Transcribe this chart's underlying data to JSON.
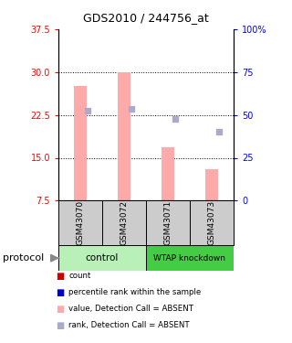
{
  "title": "GDS2010 / 244756_at",
  "samples": [
    "GSM43070",
    "GSM43072",
    "GSM43071",
    "GSM43073"
  ],
  "bar_values": [
    27.5,
    30.0,
    16.8,
    13.0
  ],
  "bar_color": "#ffaaaa",
  "rank_values": [
    23.2,
    23.5,
    21.8,
    19.5
  ],
  "rank_color": "#aaaacc",
  "ylim_left": [
    7.5,
    37.5
  ],
  "left_ticks": [
    7.5,
    15.0,
    22.5,
    30.0,
    37.5
  ],
  "right_tick_labels": [
    "0",
    "25",
    "50",
    "75",
    "100%"
  ],
  "hlines": [
    15.0,
    22.5,
    30.0
  ],
  "bar_bottom": 7.5,
  "bar_width": 0.3,
  "legend_items": [
    {
      "label": "count",
      "color": "#cc0000"
    },
    {
      "label": "percentile rank within the sample",
      "color": "#0000cc"
    },
    {
      "label": "value, Detection Call = ABSENT",
      "color": "#ffaaaa"
    },
    {
      "label": "rank, Detection Call = ABSENT",
      "color": "#aaaacc"
    }
  ],
  "control_color": "#b8f0b8",
  "knockdown_color": "#44cc44",
  "sample_box_color": "#cccccc",
  "protocol_label": "protocol"
}
